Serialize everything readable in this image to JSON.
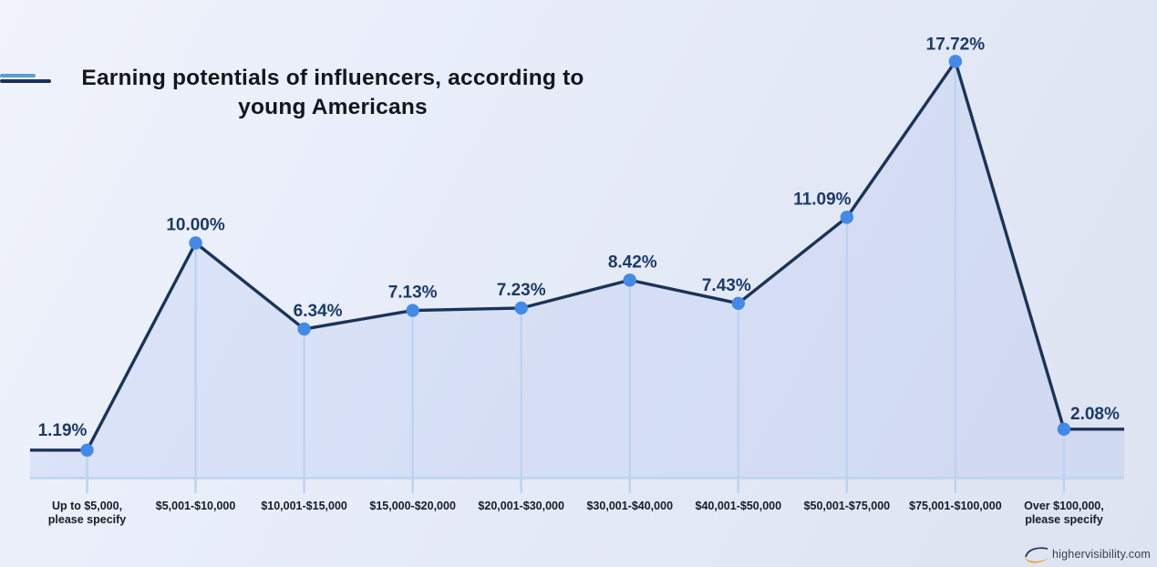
{
  "title": {
    "line1": "Earning potentials of influencers, according to",
    "line2": "young Americans"
  },
  "chart_data": {
    "type": "line",
    "title": "Earning potentials of influencers, according to young Americans",
    "categories": [
      "Up to $5,000,\nplease specify",
      "$5,001-$10,000",
      "$10,001-$15,000",
      "$15,000-$20,000",
      "$20,001-$30,000",
      "$30,001-$40,000",
      "$40,001-$50,000",
      "$50,001-$75,000",
      "$75,001-$100,000",
      "Over $100,000,\nplease specify"
    ],
    "values": [
      1.19,
      10.0,
      6.34,
      7.13,
      7.23,
      8.42,
      7.43,
      11.09,
      17.72,
      2.08
    ],
    "point_labels": [
      "1.19%",
      "10.00%",
      "6.34%",
      "7.13%",
      "7.23%",
      "8.42%",
      "7.43%",
      "11.09%",
      "17.72%",
      "2.08%"
    ],
    "xlabel": "",
    "ylabel": "",
    "ylim": [
      0,
      19
    ],
    "legend": "none",
    "grid": "vertical-droplines",
    "colors": {
      "line": "#1a3458",
      "point": "#4389e8",
      "gridline": "#bdd3ef",
      "area_fill": "rgba(158,180,235,0.22)",
      "point_label": "#1c3a68",
      "axis_label": "#151b29"
    }
  },
  "branding": {
    "site": "highervisibility.com",
    "swoosh_dark": "#223655",
    "swoosh_gold": "#e0a51d"
  },
  "accents": {
    "light_blue": "#5e9bd8",
    "dark_navy": "#1a3458"
  }
}
